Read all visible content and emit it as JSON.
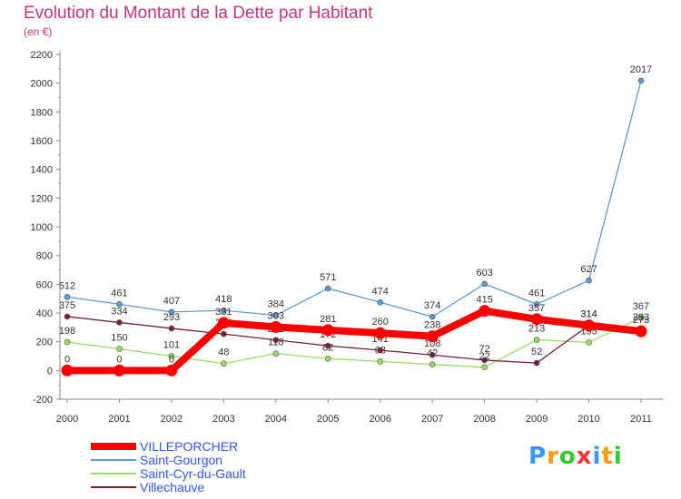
{
  "title": "Evolution du Montant de la Dette par Habitant",
  "unit": "(en €)",
  "logo": {
    "text": "Proxiti",
    "colors": [
      "#3399ff",
      "#ff9900",
      "#33cc33",
      "#ff3333",
      "#3399ff",
      "#ff9900",
      "#33cc33"
    ]
  },
  "chart_data": {
    "type": "line",
    "x": [
      "2000",
      "2001",
      "2002",
      "2003",
      "2004",
      "2005",
      "2006",
      "2007",
      "2008",
      "2009",
      "2010",
      "2011"
    ],
    "yticks": [
      "-200",
      "0",
      "200",
      "400",
      "600",
      "800",
      "1000",
      "1200",
      "1400",
      "1600",
      "1800",
      "2000",
      "2200"
    ],
    "ylim": [
      -200,
      2200
    ],
    "grid": false,
    "legend": "bottom-left",
    "series": [
      {
        "name": "Saint-Gourgon",
        "color": "#5b9bd5",
        "width": 1.3,
        "values": [
          512,
          461,
          407,
          418,
          384,
          571,
          474,
          374,
          603,
          461,
          627,
          2017
        ],
        "labels": [
          "512",
          "461",
          "407",
          "418",
          "384",
          "571",
          "474",
          "374",
          "603",
          "461",
          "627",
          "2017"
        ]
      },
      {
        "name": "Saint-Cyr-du-Gault",
        "color": "#99dd66",
        "width": 1.3,
        "values": [
          198,
          150,
          101,
          48,
          118,
          82,
          63,
          42,
          22,
          213,
          195,
          367
        ],
        "labels": [
          "198",
          "150",
          "101",
          "48",
          "118",
          "82",
          "63",
          "42",
          "22",
          "213",
          "195",
          "367"
        ]
      },
      {
        "name": "Villechauve",
        "color": "#772233",
        "width": 1.3,
        "values": [
          375,
          334,
          293,
          254,
          212,
          172,
          141,
          108,
          72,
          52,
          314,
          293
        ],
        "labels": [
          "375",
          "334",
          "293",
          "254",
          "212",
          "172",
          "141",
          "108",
          "72",
          "52",
          "314",
          "293"
        ]
      },
      {
        "name": "VILLEPORCHER",
        "color": "#ff0000",
        "width": 8,
        "values": [
          0,
          0,
          0,
          331,
          303,
          281,
          260,
          238,
          415,
          357,
          314,
          273
        ],
        "labels": [
          "0",
          "0",
          "0",
          "331",
          "303",
          "281",
          "260",
          "238",
          "415",
          "357",
          "314",
          "273"
        ]
      }
    ]
  }
}
